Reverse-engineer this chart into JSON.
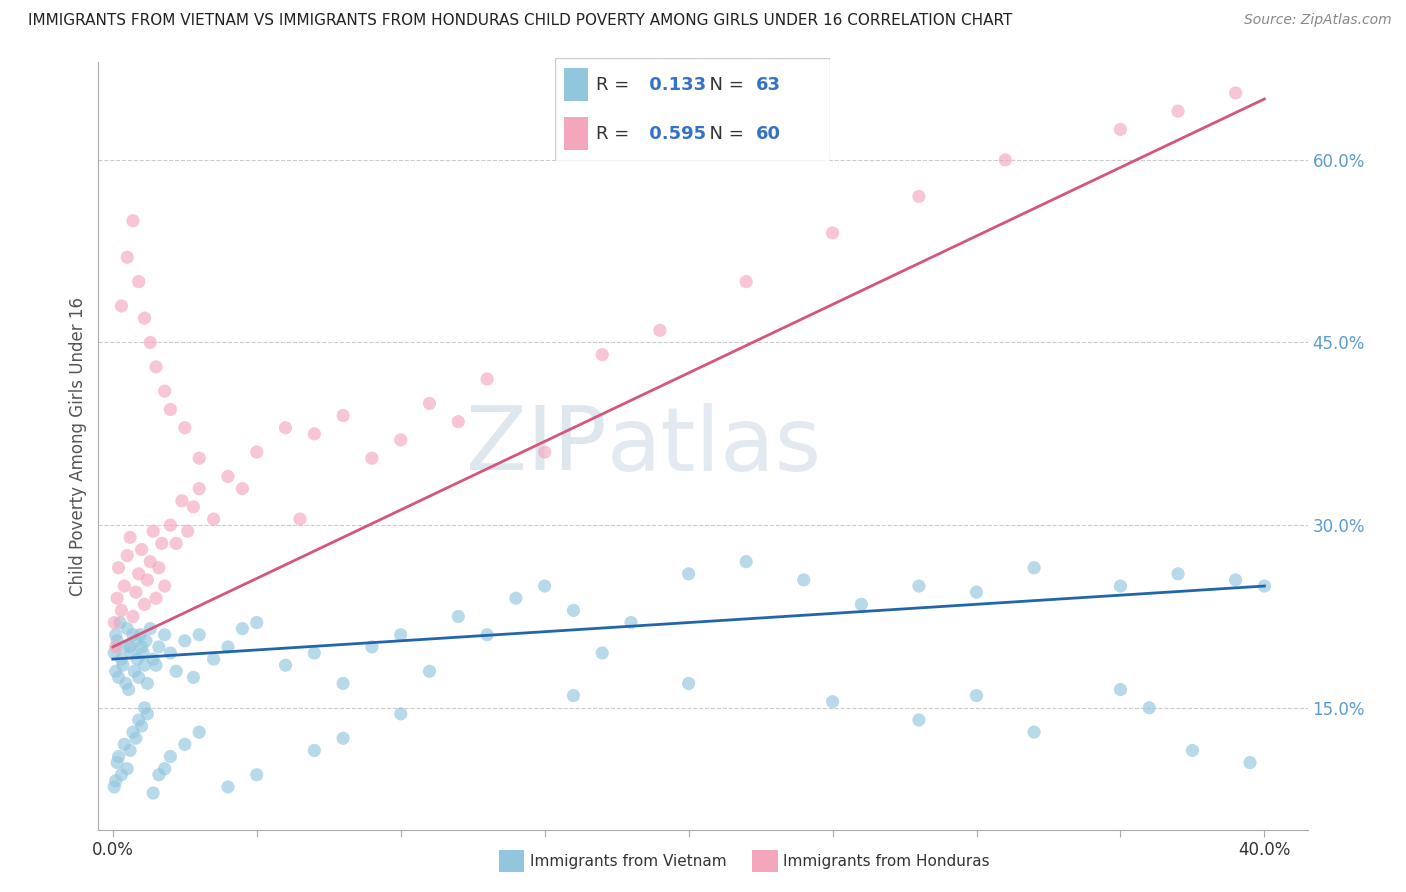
{
  "title": "IMMIGRANTS FROM VIETNAM VS IMMIGRANTS FROM HONDURAS CHILD POVERTY AMONG GIRLS UNDER 16 CORRELATION CHART",
  "source": "Source: ZipAtlas.com",
  "ylabel": "Child Poverty Among Girls Under 16",
  "xlim": [
    -0.5,
    41.5
  ],
  "ylim": [
    5.0,
    68.0
  ],
  "x_ticks": [
    0.0,
    5.0,
    10.0,
    15.0,
    20.0,
    25.0,
    30.0,
    35.0,
    40.0
  ],
  "y_ticks_right": [
    15.0,
    30.0,
    45.0,
    60.0
  ],
  "y_tick_labels_right": [
    "15.0%",
    "30.0%",
    "45.0%",
    "60.0%"
  ],
  "vietnam_color": "#92c5de",
  "honduras_color": "#f4a6bc",
  "vietnam_line_color": "#2166ac",
  "honduras_line_color": "#d6557a",
  "vietnam_R": 0.133,
  "vietnam_N": 63,
  "honduras_R": 0.595,
  "honduras_N": 60,
  "watermark_zip": "ZIP",
  "watermark_atlas": "atlas",
  "background_color": "#ffffff",
  "grid_color": "#cccccc",
  "vietnam_scatter_x": [
    0.05,
    0.1,
    0.1,
    0.15,
    0.2,
    0.25,
    0.3,
    0.35,
    0.4,
    0.45,
    0.5,
    0.55,
    0.6,
    0.65,
    0.7,
    0.75,
    0.8,
    0.85,
    0.9,
    0.95,
    1.0,
    1.05,
    1.1,
    1.15,
    1.2,
    1.3,
    1.4,
    1.5,
    1.6,
    1.8,
    2.0,
    2.2,
    2.5,
    2.8,
    3.0,
    3.5,
    4.0,
    4.5,
    5.0,
    6.0,
    7.0,
    8.0,
    9.0,
    10.0,
    11.0,
    12.0,
    13.0,
    14.0,
    15.0,
    16.0,
    17.0,
    18.0,
    20.0,
    22.0,
    24.0,
    26.0,
    28.0,
    30.0,
    32.0,
    35.0,
    37.0,
    39.0,
    40.0
  ],
  "vietnam_scatter_y": [
    19.5,
    21.0,
    18.0,
    20.5,
    17.5,
    22.0,
    19.0,
    18.5,
    20.0,
    17.0,
    21.5,
    16.5,
    20.0,
    19.5,
    21.0,
    18.0,
    20.5,
    19.0,
    17.5,
    21.0,
    20.0,
    19.5,
    18.5,
    20.5,
    17.0,
    21.5,
    19.0,
    18.5,
    20.0,
    21.0,
    19.5,
    18.0,
    20.5,
    17.5,
    21.0,
    19.0,
    20.0,
    21.5,
    22.0,
    18.5,
    19.5,
    17.0,
    20.0,
    21.0,
    18.0,
    22.5,
    21.0,
    24.0,
    25.0,
    23.0,
    19.5,
    22.0,
    26.0,
    27.0,
    25.5,
    23.5,
    25.0,
    24.5,
    26.5,
    25.0,
    26.0,
    25.5,
    25.0
  ],
  "vietnam_scatter_y_below": [
    8.5,
    9.0,
    10.5,
    11.0,
    9.5,
    12.0,
    10.0,
    11.5,
    13.0,
    12.5,
    14.0,
    13.5,
    15.0,
    14.5,
    8.0,
    9.5,
    10.0,
    11.0,
    12.0,
    13.0,
    8.5,
    9.5,
    11.5,
    12.5,
    14.5,
    16.0,
    17.0,
    15.5,
    16.5,
    14.0,
    13.0,
    11.5,
    10.5,
    16.0,
    15.0
  ],
  "vietnam_scatter_x_below": [
    0.05,
    0.1,
    0.15,
    0.2,
    0.3,
    0.4,
    0.5,
    0.6,
    0.7,
    0.8,
    0.9,
    1.0,
    1.1,
    1.2,
    1.4,
    1.6,
    1.8,
    2.0,
    2.5,
    3.0,
    4.0,
    5.0,
    7.0,
    8.0,
    10.0,
    16.0,
    20.0,
    25.0,
    35.0,
    28.0,
    32.0,
    37.5,
    39.5,
    30.0,
    36.0
  ],
  "honduras_scatter_x": [
    0.05,
    0.1,
    0.15,
    0.2,
    0.3,
    0.4,
    0.5,
    0.6,
    0.7,
    0.8,
    0.9,
    1.0,
    1.1,
    1.2,
    1.3,
    1.4,
    1.5,
    1.6,
    1.7,
    1.8,
    2.0,
    2.2,
    2.4,
    2.6,
    2.8,
    3.0,
    3.5,
    4.0,
    5.0,
    6.0,
    7.0,
    8.0,
    9.0,
    10.0,
    11.0,
    12.0,
    13.0,
    15.0,
    17.0,
    19.0,
    22.0,
    25.0,
    28.0,
    31.0,
    35.0,
    37.0,
    39.0
  ],
  "honduras_scatter_y": [
    22.0,
    20.0,
    24.0,
    26.5,
    23.0,
    25.0,
    27.5,
    29.0,
    22.5,
    24.5,
    26.0,
    28.0,
    23.5,
    25.5,
    27.0,
    29.5,
    24.0,
    26.5,
    28.5,
    25.0,
    30.0,
    28.5,
    32.0,
    29.5,
    31.5,
    33.0,
    30.5,
    34.0,
    36.0,
    38.0,
    37.5,
    39.0,
    35.5,
    37.0,
    40.0,
    38.5,
    42.0,
    36.0,
    44.0,
    46.0,
    50.0,
    54.0,
    57.0,
    60.0,
    62.5,
    64.0,
    65.5
  ],
  "honduras_scatter_extra_x": [
    0.3,
    0.5,
    0.7,
    0.9,
    1.1,
    1.3,
    1.5,
    1.8,
    2.0,
    2.5,
    3.0,
    4.5,
    6.5
  ],
  "honduras_scatter_extra_y": [
    48.0,
    52.0,
    55.0,
    50.0,
    47.0,
    45.0,
    43.0,
    41.0,
    39.5,
    38.0,
    35.5,
    33.0,
    30.5
  ],
  "viet_line_x0": 0.0,
  "viet_line_y0": 19.0,
  "viet_line_x1": 40.0,
  "viet_line_y1": 25.0,
  "hond_line_x0": 0.0,
  "hond_line_y0": 20.0,
  "hond_line_x1": 40.0,
  "hond_line_y1": 65.0
}
